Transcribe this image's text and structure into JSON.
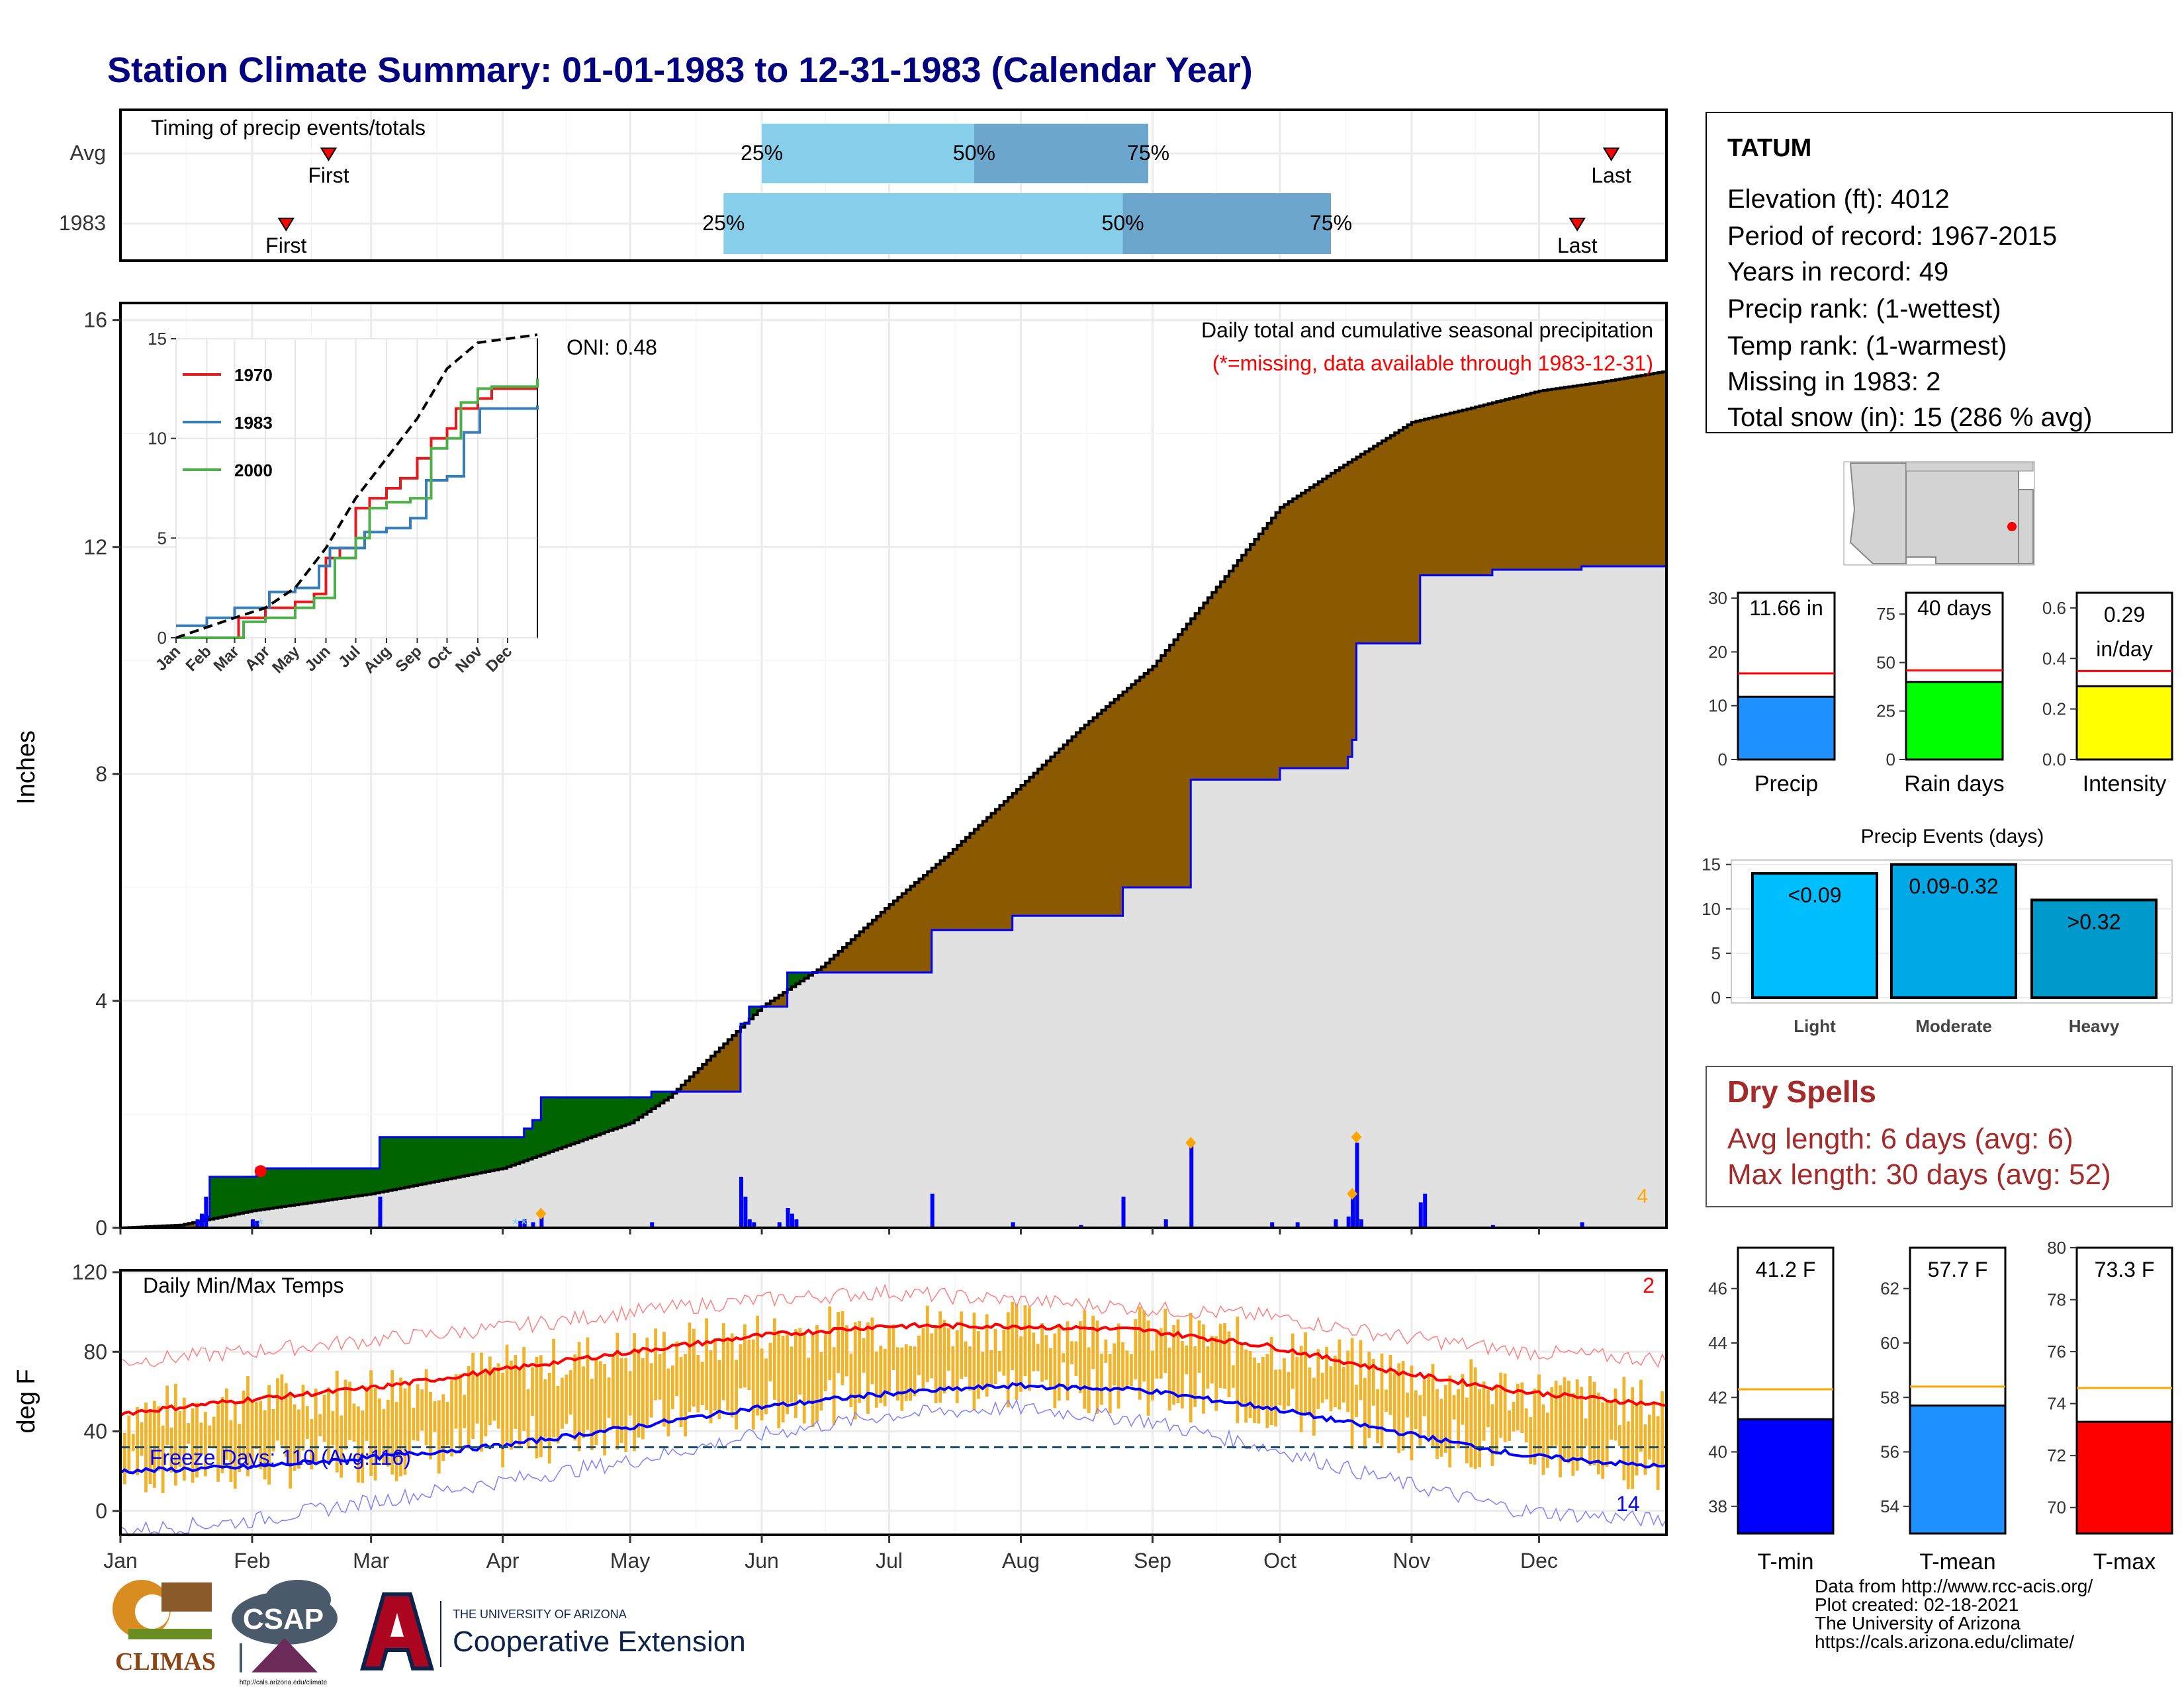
{
  "title": "Station Climate Summary: 01-01-1983 to 12-31-1983 (Calendar Year)",
  "colors": {
    "title": "#000080",
    "q_light": "#87CEEB",
    "q_dark": "#6CA6CD",
    "surplus": "#006400",
    "deficit": "#8B5A00",
    "avg_fill": "#E1E1E1",
    "bar": "#0000FF",
    "tmin": "#0000FF",
    "tmax": "#FF0000",
    "temp_bar": "#F0B32A",
    "dry": "#A52A2A"
  },
  "timing": {
    "label": "Timing of precip events/totals",
    "rows": [
      {
        "label": "Avg",
        "first_label": "First",
        "last_label": "Last",
        "first": "Feb 19",
        "last": "Dec 18",
        "q25": "Jun 01",
        "q50": "Jul 21",
        "q75": "Aug 31",
        "q25_label": "25%",
        "q50_label": "50%",
        "q75_label": "75%"
      },
      {
        "label": "1983",
        "first_label": "First",
        "last_label": "Last",
        "first": "Feb 09",
        "last": "Dec 10",
        "q25": "May 23",
        "q50": "Aug 25",
        "q75": "Oct 13",
        "q25_label": "25%",
        "q50_label": "50%",
        "q75_label": "75%"
      }
    ]
  },
  "precip": {
    "ylabel": "Inches",
    "yticks": [
      "0",
      "4",
      "8",
      "12",
      "16"
    ],
    "ylim": [
      0,
      16.3
    ],
    "header": "Daily total and cumulative seasonal precipitation",
    "missing_note": "(*=missing, data available through 1983-12-31)",
    "oni": "ONI: 0.48",
    "count_label": "4",
    "cum_1983": [
      [
        "Jan 01",
        0.0
      ],
      [
        "Jan 20",
        0.2
      ],
      [
        "Jan 22",
        0.9
      ],
      [
        "Feb 01",
        0.9
      ],
      [
        "Feb 02",
        1.05
      ],
      [
        "Mar 01",
        1.05
      ],
      [
        "Mar 03",
        1.6
      ],
      [
        "Apr 05",
        1.6
      ],
      [
        "Apr 06",
        1.75
      ],
      [
        "Apr 08",
        1.9
      ],
      [
        "Apr 10",
        2.3
      ],
      [
        "May 03",
        2.3
      ],
      [
        "May 06",
        2.4
      ],
      [
        "May 25",
        2.4
      ],
      [
        "May 27",
        3.6
      ],
      [
        "May 29",
        3.9
      ],
      [
        "Jun 05",
        3.9
      ],
      [
        "Jun 07",
        4.5
      ],
      [
        "Jul 10",
        4.5
      ],
      [
        "Jul 11",
        5.25
      ],
      [
        "Jul 29",
        5.25
      ],
      [
        "Jul 30",
        5.5
      ],
      [
        "Aug 23",
        5.5
      ],
      [
        "Aug 25",
        6.0
      ],
      [
        "Sep 09",
        6.0
      ],
      [
        "Sep 10",
        7.9
      ],
      [
        "Sep 30",
        7.9
      ],
      [
        "Oct 01",
        8.1
      ],
      [
        "Oct 16",
        8.1
      ],
      [
        "Oct 17",
        8.3
      ],
      [
        "Oct 18",
        8.6
      ],
      [
        "Oct 19",
        10.3
      ],
      [
        "Nov 01",
        10.3
      ],
      [
        "Nov 03",
        11.5
      ],
      [
        "Nov 20",
        11.6
      ],
      [
        "Dec 10",
        11.6
      ],
      [
        "Dec 11",
        11.66
      ],
      [
        "Dec 31",
        11.66
      ]
    ],
    "cum_avg": [
      [
        "Jan 01",
        0.0
      ],
      [
        "Jan 15",
        0.05
      ],
      [
        "Feb 01",
        0.3
      ],
      [
        "Mar 01",
        0.6
      ],
      [
        "Apr 01",
        1.05
      ],
      [
        "May 01",
        1.85
      ],
      [
        "May 10",
        2.3
      ],
      [
        "Jun 01",
        3.9
      ],
      [
        "Jun 15",
        4.6
      ],
      [
        "Jul 01",
        5.7
      ],
      [
        "Jul 15",
        6.6
      ],
      [
        "Aug 01",
        7.8
      ],
      [
        "Aug 15",
        8.8
      ],
      [
        "Sep 01",
        9.9
      ],
      [
        "Sep 15",
        11.2
      ],
      [
        "Oct 01",
        12.7
      ],
      [
        "Oct 15",
        13.4
      ],
      [
        "Nov 01",
        14.2
      ],
      [
        "Nov 15",
        14.45
      ],
      [
        "Dec 01",
        14.75
      ],
      [
        "Dec 15",
        14.9
      ],
      [
        "Dec 31",
        15.1
      ]
    ],
    "daily": [
      [
        "Jan 19",
        0.15
      ],
      [
        "Jan 20",
        0.25
      ],
      [
        "Jan 21",
        0.55
      ],
      [
        "Feb 01",
        0.15
      ],
      [
        "Feb 02",
        0.12
      ],
      [
        "Mar 03",
        0.55
      ],
      [
        "Apr 05",
        0.12
      ],
      [
        "Apr 06",
        0.15
      ],
      [
        "Apr 08",
        0.1
      ],
      [
        "Apr 10",
        0.2
      ],
      [
        "May 06",
        0.1
      ],
      [
        "May 27",
        0.9
      ],
      [
        "May 28",
        0.55
      ],
      [
        "May 29",
        0.15
      ],
      [
        "May 30",
        0.1
      ],
      [
        "Jun 05",
        0.1
      ],
      [
        "Jun 07",
        0.35
      ],
      [
        "Jun 08",
        0.25
      ],
      [
        "Jun 09",
        0.15
      ],
      [
        "Jul 11",
        0.6
      ],
      [
        "Jul 30",
        0.1
      ],
      [
        "Aug 15",
        0.05
      ],
      [
        "Aug 25",
        0.55
      ],
      [
        "Sep 04",
        0.15
      ],
      [
        "Sep 10",
        1.5
      ],
      [
        "Sep 29",
        0.1
      ],
      [
        "Oct 05",
        0.1
      ],
      [
        "Oct 14",
        0.15
      ],
      [
        "Oct 17",
        0.2
      ],
      [
        "Oct 18",
        0.6
      ],
      [
        "Oct 19",
        1.5
      ],
      [
        "Oct 20",
        0.15
      ],
      [
        "Nov 03",
        0.45
      ],
      [
        "Nov 04",
        0.6
      ],
      [
        "Nov 20",
        0.05
      ],
      [
        "Dec 11",
        0.1
      ]
    ],
    "markers_orange": [
      [
        "Apr 10",
        0.25
      ],
      [
        "Sep 10",
        1.5
      ],
      [
        "Oct 18",
        0.6
      ],
      [
        "Oct 19",
        1.6
      ]
    ],
    "markers_red": [
      [
        "Feb 03",
        1.0
      ]
    ],
    "snow_markers": [
      [
        "Feb 03",
        0.05
      ],
      [
        "Apr 04",
        0.05
      ],
      [
        "Apr 06",
        0.05
      ]
    ]
  },
  "inset": {
    "series": [
      {
        "name": "1970",
        "color": "#E41A1C",
        "points": [
          [
            "Jan 01",
            0
          ],
          [
            "Mar 01",
            0
          ],
          [
            "Mar 05",
            1
          ],
          [
            "Apr 01",
            1.5
          ],
          [
            "May 01",
            1.8
          ],
          [
            "May 20",
            2.2
          ],
          [
            "Jun 01",
            4
          ],
          [
            "Jun 15",
            4.5
          ],
          [
            "Jul 01",
            6.5
          ],
          [
            "Jul 15",
            7
          ],
          [
            "Aug 01",
            7.5
          ],
          [
            "Aug 15",
            8
          ],
          [
            "Sep 01",
            9
          ],
          [
            "Sep 15",
            10
          ],
          [
            "Oct 01",
            10.5
          ],
          [
            "Oct 10",
            11.5
          ],
          [
            "Nov 01",
            12
          ],
          [
            "Nov 15",
            12.5
          ],
          [
            "Dec 31",
            12.5
          ]
        ]
      },
      {
        "name": "1983",
        "color": "#377EB8",
        "points": [
          [
            "Jan 01",
            0.6
          ],
          [
            "Feb 01",
            1.0
          ],
          [
            "Mar 01",
            1.5
          ],
          [
            "Apr 05",
            2.3
          ],
          [
            "May 01",
            2.5
          ],
          [
            "May 25",
            3.6
          ],
          [
            "Jun 05",
            4.5
          ],
          [
            "Jul 10",
            5.3
          ],
          [
            "Aug 01",
            5.5
          ],
          [
            "Aug 25",
            6.0
          ],
          [
            "Sep 10",
            7.9
          ],
          [
            "Oct 01",
            8.1
          ],
          [
            "Oct 18",
            10.3
          ],
          [
            "Nov 03",
            11.5
          ],
          [
            "Dec 31",
            11.66
          ]
        ]
      },
      {
        "name": "2000",
        "color": "#4DAF4A",
        "points": [
          [
            "Jan 01",
            0
          ],
          [
            "Mar 01",
            0
          ],
          [
            "Mar 10",
            0.8
          ],
          [
            "Apr 01",
            1.0
          ],
          [
            "May 01",
            1.5
          ],
          [
            "May 20",
            2.0
          ],
          [
            "Jun 10",
            4.0
          ],
          [
            "Jul 01",
            5.0
          ],
          [
            "Jul 15",
            6.5
          ],
          [
            "Aug 01",
            6.8
          ],
          [
            "Aug 25",
            7.0
          ],
          [
            "Sep 15",
            9.5
          ],
          [
            "Oct 01",
            10.0
          ],
          [
            "Oct 15",
            11.8
          ],
          [
            "Nov 01",
            12.5
          ],
          [
            "Nov 15",
            12.6
          ],
          [
            "Dec 31",
            13.0
          ]
        ]
      },
      {
        "name": "",
        "color": "#000000",
        "dashed": true,
        "points": [
          [
            "Jan 01",
            0
          ],
          [
            "Mar 01",
            1
          ],
          [
            "Apr 01",
            1.5
          ],
          [
            "May 01",
            2.5
          ],
          [
            "Jun 01",
            4.5
          ],
          [
            "Jul 01",
            7
          ],
          [
            "Aug 01",
            9
          ],
          [
            "Sep 01",
            11
          ],
          [
            "Oct 01",
            13.5
          ],
          [
            "Nov 01",
            14.8
          ],
          [
            "Dec 01",
            15
          ],
          [
            "Dec 31",
            15.2
          ]
        ]
      }
    ],
    "yticks": [
      "0",
      "5",
      "10",
      "15"
    ],
    "ylim": [
      0,
      15
    ],
    "months": [
      "Jan",
      "Feb",
      "Mar",
      "Apr",
      "May",
      "Jun",
      "Jul",
      "Aug",
      "Sep",
      "Oct",
      "Nov",
      "Dec"
    ]
  },
  "temps": {
    "label": "Daily Min/Max Temps",
    "ylabel": "deg F",
    "yticks": [
      "0",
      "40",
      "80",
      "120"
    ],
    "ylim": [
      -12,
      121
    ],
    "freeze_label": "Freeze Days: 110 (Avg:116)",
    "freeze_line": 32,
    "count_top": "2",
    "count_bottom": "14",
    "avg_max": [
      [
        0,
        49
      ],
      [
        30,
        56
      ],
      [
        60,
        62
      ],
      [
        90,
        71
      ],
      [
        120,
        80
      ],
      [
        150,
        88
      ],
      [
        180,
        93
      ],
      [
        210,
        93
      ],
      [
        240,
        91
      ],
      [
        270,
        83
      ],
      [
        300,
        70
      ],
      [
        330,
        60
      ],
      [
        364,
        53
      ]
    ],
    "avg_min": [
      [
        0,
        20
      ],
      [
        30,
        22
      ],
      [
        60,
        27
      ],
      [
        90,
        33
      ],
      [
        120,
        42
      ],
      [
        150,
        52
      ],
      [
        180,
        59
      ],
      [
        210,
        63
      ],
      [
        240,
        61
      ],
      [
        270,
        52
      ],
      [
        300,
        40
      ],
      [
        330,
        28
      ],
      [
        364,
        22
      ]
    ],
    "rec_max": [
      [
        0,
        75
      ],
      [
        30,
        80
      ],
      [
        60,
        86
      ],
      [
        90,
        92
      ],
      [
        120,
        100
      ],
      [
        150,
        106
      ],
      [
        180,
        110
      ],
      [
        210,
        106
      ],
      [
        240,
        102
      ],
      [
        270,
        98
      ],
      [
        300,
        88
      ],
      [
        330,
        80
      ],
      [
        364,
        76
      ]
    ],
    "rec_min": [
      [
        0,
        -10
      ],
      [
        30,
        -5
      ],
      [
        60,
        5
      ],
      [
        90,
        15
      ],
      [
        120,
        25
      ],
      [
        150,
        38
      ],
      [
        180,
        48
      ],
      [
        210,
        52
      ],
      [
        240,
        46
      ],
      [
        270,
        32
      ],
      [
        300,
        15
      ],
      [
        330,
        0
      ],
      [
        364,
        -5
      ]
    ]
  },
  "months": [
    "Jan",
    "Feb",
    "Mar",
    "Apr",
    "May",
    "Jun",
    "Jul",
    "Aug",
    "Sep",
    "Oct",
    "Nov",
    "Dec"
  ],
  "info": {
    "station": "TATUM",
    "lines": [
      "Elevation (ft): 4012",
      "Period of record: 1967-2015",
      "Years in record: 49",
      "Precip rank:  (1-wettest)",
      "Temp rank:  (1-warmest)",
      "Missing in 1983: 2",
      "Total snow (in): 15 (286 % avg)"
    ]
  },
  "mini_bars": [
    {
      "label": "Precip",
      "value": 11.66,
      "avg": 16,
      "value_label": "11.66 in",
      "yticks": [
        "0",
        "10",
        "20",
        "30"
      ],
      "ylim": [
        0,
        31
      ],
      "color": "#1E90FF"
    },
    {
      "label": "Rain days",
      "value": 40,
      "avg": 46,
      "value_label": "40 days",
      "yticks": [
        "0",
        "25",
        "50",
        "75"
      ],
      "ylim": [
        0,
        86
      ],
      "color": "#00FF00"
    },
    {
      "label": "Intensity",
      "value": 0.29,
      "avg": 0.35,
      "value_label": "0.29",
      "value_label2": "in/day",
      "yticks": [
        "0.0",
        "0.2",
        "0.4",
        "0.6"
      ],
      "ylim": [
        0,
        0.66
      ],
      "color": "#FFFF00"
    }
  ],
  "precip_events": {
    "title": "Precip Events (days)",
    "categories": [
      "Light",
      "Moderate",
      "Heavy"
    ],
    "labels": [
      "<0.09",
      "0.09-0.32",
      ">0.32"
    ],
    "values": [
      14,
      15,
      11
    ],
    "colors": [
      "#00BFFF",
      "#00A9E6",
      "#0099CC"
    ],
    "yticks": [
      "0",
      "5",
      "10",
      "15"
    ],
    "ylim": [
      0,
      15.5
    ]
  },
  "dry_spells": {
    "title": "Dry Spells",
    "lines": [
      "Avg length: 6 days (avg: 6)",
      "Max length: 30 days (avg: 52)"
    ]
  },
  "temp_bars": [
    {
      "label": "T-min",
      "value": 41.2,
      "avg": 42.3,
      "value_label": "41.2 F",
      "yticks": [
        "38",
        "40",
        "42",
        "44",
        "46"
      ],
      "ytick_vals": [
        38,
        40,
        42,
        44,
        46
      ],
      "ylim": [
        37,
        47.5
      ],
      "color": "#0000FF"
    },
    {
      "label": "T-mean",
      "value": 57.7,
      "avg": 58.4,
      "value_label": "57.7 F",
      "yticks": [
        "54",
        "56",
        "58",
        "60",
        "62"
      ],
      "ytick_vals": [
        54,
        56,
        58,
        60,
        62
      ],
      "ylim": [
        53,
        63.5
      ],
      "color": "#1E90FF"
    },
    {
      "label": "T-max",
      "value": 73.3,
      "avg": 74.6,
      "value_label": "73.3 F",
      "yticks": [
        "70",
        "72",
        "74",
        "76",
        "78",
        "80"
      ],
      "ytick_vals": [
        70,
        72,
        74,
        76,
        78,
        80
      ],
      "ylim": [
        69,
        80
      ],
      "color": "#FF0000"
    }
  ],
  "footer": {
    "lines": [
      "Data from http://www.rcc-acis.org/",
      "Plot created: 02-18-2021",
      "The University of Arizona",
      "https://cals.arizona.edu/climate/"
    ],
    "logo_climas": "CLIMAS",
    "logo_csap": "CSAP",
    "logo_csap_url": "http://cals.arizona.edu/climate",
    "ua_top": "THE UNIVERSITY OF ARIZONA",
    "ua_bottom": "Cooperative Extension"
  }
}
